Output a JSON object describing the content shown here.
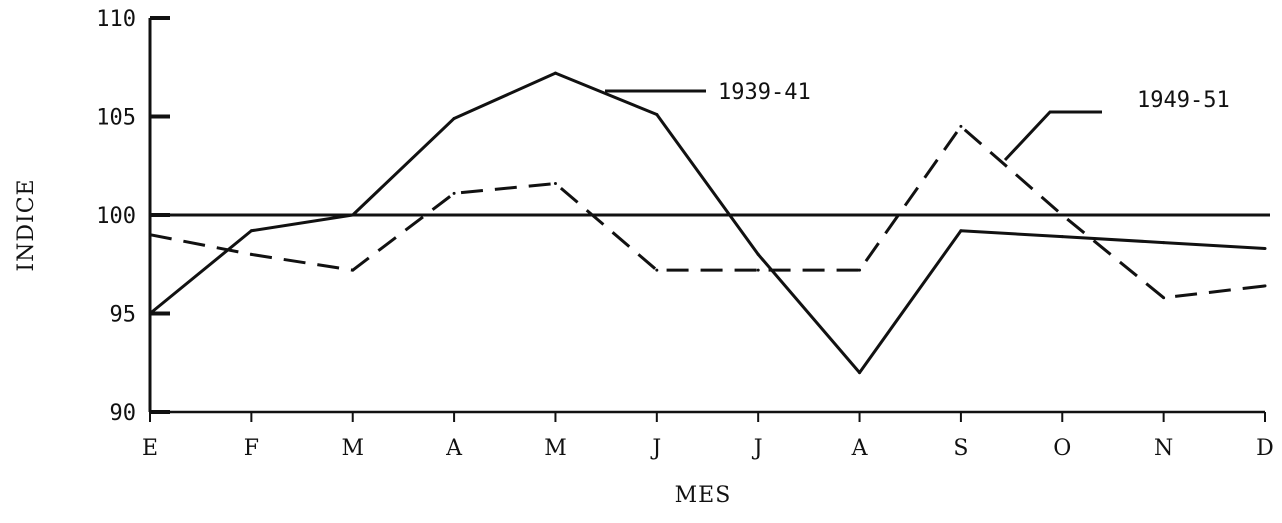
{
  "chart_data": {
    "type": "line",
    "xlabel": "MES",
    "ylabel": "INDICE",
    "categories": [
      "E",
      "F",
      "M",
      "A",
      "M",
      "J",
      "J",
      "A",
      "S",
      "O",
      "N",
      "D"
    ],
    "y_tick_labels": [
      "110",
      "105",
      "100",
      "95",
      "90"
    ],
    "y_ticks": [
      110,
      105,
      100,
      95,
      90
    ],
    "ylim": [
      90,
      110
    ],
    "reference_line": 100,
    "series": [
      {
        "name": "1939-41",
        "style": "solid",
        "values": [
          95.0,
          99.2,
          100.0,
          104.9,
          107.2,
          105.1,
          98.0,
          92.0,
          99.2,
          98.9,
          98.6,
          98.3
        ]
      },
      {
        "name": "1949-51",
        "style": "dashed",
        "values": [
          99.0,
          98.0,
          97.2,
          101.1,
          101.6,
          97.2,
          97.2,
          97.2,
          104.5,
          100.0,
          95.8,
          96.4
        ]
      }
    ],
    "grid": false,
    "legend": "callout labels"
  }
}
